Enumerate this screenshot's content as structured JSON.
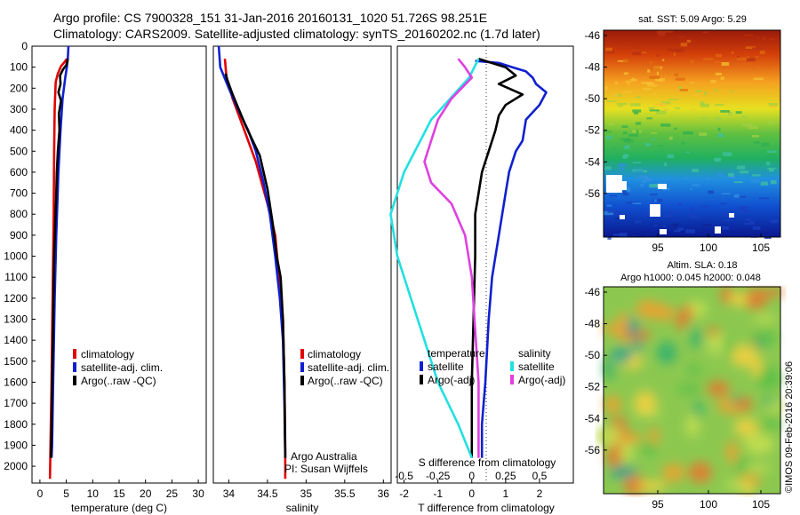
{
  "header": {
    "line1": "Argo profile: CS 7900328_151 31-Jan-2016 20160131_1020 51.726S 98.251E",
    "line2": "Climatology: CARS2009. Satellite-adjusted climatology: synTS_20160202.nc (1.7d later)"
  },
  "colors": {
    "climatology": "#e00000",
    "satellite": "#1020d0",
    "argo": "#000000",
    "sal_satellite": "#22e0e0",
    "sal_argo": "#e040e0"
  },
  "chart_data": [
    {
      "type": "line",
      "name": "temperature-profile",
      "xlabel": "temperature (deg C)",
      "xlim": [
        -1.5,
        31.5
      ],
      "xticks": [
        "0",
        "5",
        "10",
        "15",
        "20",
        "25",
        "30"
      ],
      "ylim": [
        0,
        2080
      ],
      "yticks": [
        "0",
        "100",
        "200",
        "300",
        "400",
        "500",
        "600",
        "700",
        "800",
        "900",
        "1000",
        "1100",
        "1200",
        "1300",
        "1400",
        "1500",
        "1600",
        "1700",
        "1800",
        "1900",
        "2000"
      ],
      "legend": [
        "climatology",
        "satellite-adj. clim.",
        "Argo(..raw -QC)"
      ],
      "series": [
        {
          "name": "climatology",
          "points": [
            [
              5.1,
              60
            ],
            [
              4.7,
              75
            ],
            [
              4.0,
              95
            ],
            [
              3.4,
              130
            ],
            [
              3.0,
              170
            ],
            [
              2.9,
              230
            ],
            [
              2.8,
              300
            ],
            [
              2.7,
              500
            ],
            [
              2.6,
              800
            ],
            [
              2.4,
              1200
            ],
            [
              2.2,
              1600
            ],
            [
              2.0,
              1900
            ],
            [
              1.9,
              2060
            ]
          ]
        },
        {
          "name": "satellite-adj. clim.",
          "points": [
            [
              5.4,
              0
            ],
            [
              5.3,
              50
            ],
            [
              5.1,
              100
            ],
            [
              4.8,
              150
            ],
            [
              4.3,
              250
            ],
            [
              3.9,
              400
            ],
            [
              3.5,
              600
            ],
            [
              3.1,
              900
            ],
            [
              2.8,
              1200
            ],
            [
              2.5,
              1600
            ],
            [
              2.3,
              1900
            ],
            [
              2.2,
              1960
            ]
          ]
        },
        {
          "name": "Argo(..raw -QC)",
          "points": [
            [
              5.3,
              60
            ],
            [
              5.0,
              90
            ],
            [
              4.4,
              110
            ],
            [
              3.8,
              140
            ],
            [
              3.9,
              180
            ],
            [
              3.5,
              220
            ],
            [
              4.0,
              260
            ],
            [
              3.6,
              320
            ],
            [
              3.7,
              400
            ],
            [
              3.4,
              500
            ],
            [
              3.2,
              600
            ],
            [
              3.1,
              700
            ],
            [
              2.9,
              850
            ],
            [
              2.7,
              1000
            ],
            [
              2.5,
              1300
            ],
            [
              2.3,
              1600
            ],
            [
              2.2,
              1800
            ],
            [
              2.1,
              1960
            ]
          ]
        }
      ]
    },
    {
      "type": "line",
      "name": "salinity-profile",
      "xlabel": "salinity",
      "xlim": [
        33.8,
        36.1
      ],
      "xticks": [
        "34",
        "34.5",
        "35",
        "35.5",
        "36"
      ],
      "ylim": [
        0,
        2080
      ],
      "legend": [
        "climatology",
        "satellite-adj. clim.",
        "Argo(..raw -QC)"
      ],
      "annotations": [
        "Argo Australia",
        "PI: Susan Wijffels"
      ],
      "series": [
        {
          "name": "climatology",
          "points": [
            [
              33.95,
              60
            ],
            [
              33.97,
              150
            ],
            [
              34.05,
              250
            ],
            [
              34.2,
              400
            ],
            [
              34.35,
              550
            ],
            [
              34.5,
              750
            ],
            [
              34.6,
              900
            ],
            [
              34.65,
              1100
            ],
            [
              34.7,
              1300
            ],
            [
              34.72,
              1600
            ],
            [
              34.73,
              1900
            ],
            [
              34.73,
              2060
            ]
          ]
        },
        {
          "name": "satellite-adj. clim.",
          "points": [
            [
              33.87,
              0
            ],
            [
              33.89,
              100
            ],
            [
              34.0,
              200
            ],
            [
              34.12,
              300
            ],
            [
              34.25,
              400
            ],
            [
              34.35,
              500
            ],
            [
              34.45,
              650
            ],
            [
              34.53,
              800
            ],
            [
              34.6,
              1000
            ],
            [
              34.66,
              1200
            ],
            [
              34.7,
              1400
            ],
            [
              34.72,
              1700
            ],
            [
              34.73,
              1960
            ]
          ]
        },
        {
          "name": "Argo(..raw -QC)",
          "points": [
            [
              33.96,
              130
            ],
            [
              33.98,
              160
            ],
            [
              34.05,
              230
            ],
            [
              34.22,
              380
            ],
            [
              34.4,
              520
            ],
            [
              34.5,
              680
            ],
            [
              34.57,
              850
            ],
            [
              34.62,
              1000
            ],
            [
              34.67,
              1100
            ],
            [
              34.7,
              1300
            ],
            [
              34.72,
              1600
            ],
            [
              34.73,
              1960
            ]
          ]
        }
      ]
    },
    {
      "type": "line",
      "name": "difference-profile",
      "xlabel": "T difference from climatology",
      "xlabel_top": "S difference from climatology",
      "xlim": [
        -2.2,
        3.0
      ],
      "xticks": [
        "-2",
        "-1",
        "0",
        "1",
        "2"
      ],
      "xticks_top": [
        "-0.5",
        "-0.25",
        "0",
        "0.25",
        "0.5"
      ],
      "ylim": [
        0,
        2080
      ],
      "legend": {
        "temperature_title": "temperature",
        "salinity_title": "salinity",
        "temperature": [
          "satellite",
          "Argo(-adj)"
        ],
        "salinity": [
          "satellite",
          "Argo(-adj)"
        ]
      },
      "series": [
        {
          "name": "satellite",
          "group": "temperature",
          "points": [
            [
              0.1,
              70
            ],
            [
              0.8,
              80
            ],
            [
              1.2,
              100
            ],
            [
              1.6,
              120
            ],
            [
              1.8,
              150
            ],
            [
              1.9,
              180
            ],
            [
              2.2,
              220
            ],
            [
              2.0,
              280
            ],
            [
              1.6,
              350
            ],
            [
              1.5,
              450
            ],
            [
              1.3,
              500
            ],
            [
              1.1,
              600
            ],
            [
              1.0,
              700
            ],
            [
              0.8,
              900
            ],
            [
              0.6,
              1100
            ],
            [
              0.5,
              1300
            ],
            [
              0.4,
              1600
            ],
            [
              0.3,
              1800
            ],
            [
              0.3,
              1960
            ]
          ]
        },
        {
          "name": "Argo(-adj)",
          "group": "temperature",
          "points": [
            [
              0.2,
              60
            ],
            [
              1.0,
              100
            ],
            [
              1.3,
              140
            ],
            [
              0.8,
              180
            ],
            [
              1.5,
              230
            ],
            [
              1.0,
              280
            ],
            [
              0.8,
              330
            ],
            [
              0.7,
              400
            ],
            [
              0.5,
              500
            ],
            [
              0.3,
              600
            ],
            [
              0.2,
              700
            ],
            [
              0.1,
              800
            ],
            [
              0.1,
              1000
            ],
            [
              0.05,
              1300
            ],
            [
              0.0,
              1600
            ],
            [
              0.0,
              1960
            ]
          ]
        },
        {
          "name": "satellite",
          "group": "salinity",
          "points": [
            [
              0.05,
              60
            ],
            [
              -0.02,
              150
            ],
            [
              -0.3,
              350
            ],
            [
              -0.5,
              600
            ],
            [
              -0.6,
              800
            ],
            [
              -0.55,
              1000
            ],
            [
              -0.45,
              1200
            ],
            [
              -0.35,
              1400
            ],
            [
              -0.25,
              1600
            ],
            [
              -0.1,
              1800
            ],
            [
              0.0,
              1960
            ]
          ]
        },
        {
          "name": "Argo(-adj)",
          "group": "salinity",
          "points": [
            [
              -0.1,
              60
            ],
            [
              -0.05,
              100
            ],
            [
              0.0,
              150
            ],
            [
              -0.15,
              250
            ],
            [
              -0.25,
              350
            ],
            [
              -0.3,
              450
            ],
            [
              -0.35,
              550
            ],
            [
              -0.3,
              650
            ],
            [
              -0.15,
              750
            ],
            [
              -0.05,
              900
            ],
            [
              0.0,
              1100
            ],
            [
              0.02,
              1300
            ],
            [
              0.05,
              1600
            ],
            [
              0.05,
              1960
            ]
          ]
        }
      ]
    },
    {
      "type": "heatmap",
      "name": "sst-map",
      "title": "sat. SST: 5.09 Argo: 5.29",
      "xticks": [
        "95",
        "100",
        "105"
      ],
      "yticks": [
        "-46",
        "-48",
        "-50",
        "-52",
        "-54",
        "-56"
      ]
    },
    {
      "type": "heatmap",
      "name": "sla-map",
      "title_line1": "Altim. SLA: 0.18",
      "title_line2": "Argo h1000: 0.045 h2000: 0.048",
      "xticks": [
        "95",
        "100",
        "105"
      ],
      "yticks": [
        "-46",
        "-48",
        "-50",
        "-52",
        "-54",
        "-56"
      ]
    }
  ],
  "watermark": "©IMOS 09-Feb-2016 20:39:06"
}
